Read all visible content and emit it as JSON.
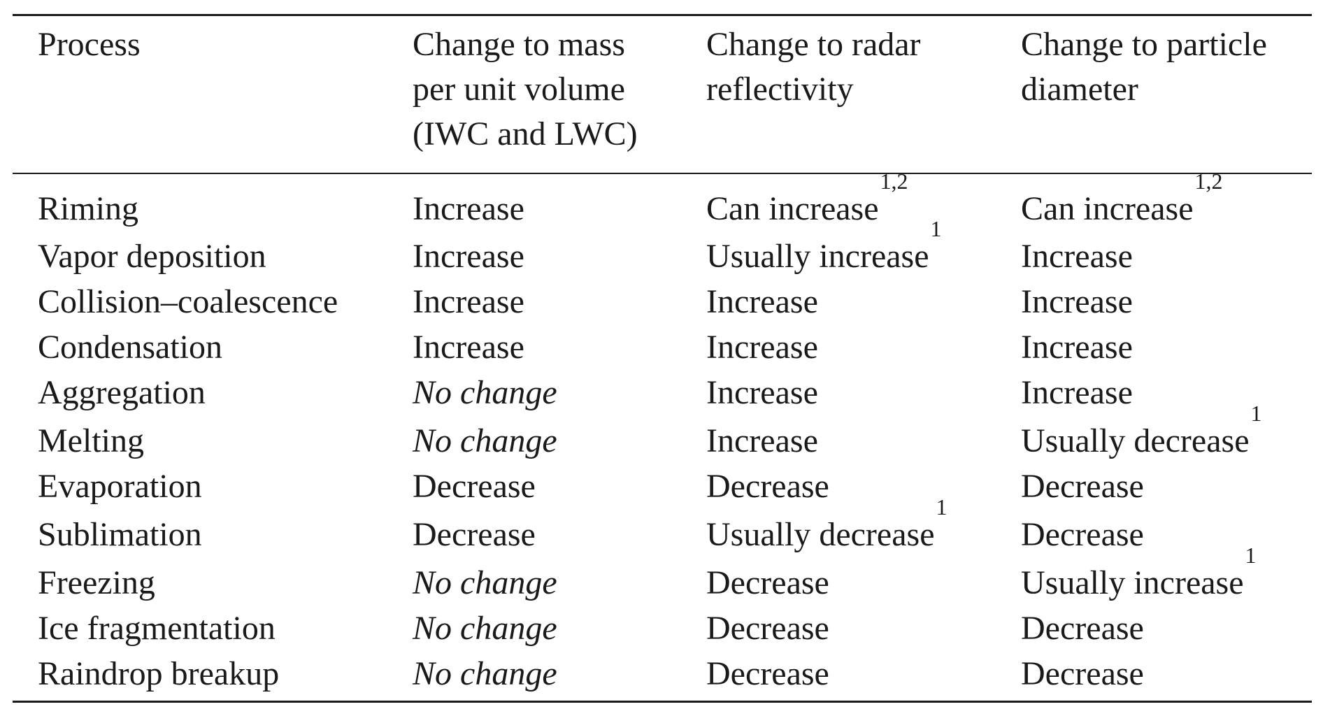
{
  "table": {
    "headers": [
      {
        "lines": [
          "Process"
        ]
      },
      {
        "lines": [
          "Change to mass",
          "per unit volume",
          "(IWC and LWC)"
        ]
      },
      {
        "lines": [
          "Change to radar",
          "reflectivity"
        ]
      },
      {
        "lines": [
          "Change to particle",
          "diameter"
        ]
      }
    ],
    "rows": [
      {
        "process": "Riming",
        "mass": "Increase",
        "mass_italic": false,
        "reflectivity": "Can increase",
        "reflectivity_sup": "1,2",
        "diameter": "Can increase",
        "diameter_sup": "1,2"
      },
      {
        "process": "Vapor deposition",
        "mass": "Increase",
        "mass_italic": false,
        "reflectivity": "Usually increase",
        "reflectivity_sup": "1",
        "diameter": "Increase",
        "diameter_sup": ""
      },
      {
        "process": "Collision–coalescence",
        "mass": "Increase",
        "mass_italic": false,
        "reflectivity": "Increase",
        "reflectivity_sup": "",
        "diameter": "Increase",
        "diameter_sup": ""
      },
      {
        "process": "Condensation",
        "mass": "Increase",
        "mass_italic": false,
        "reflectivity": "Increase",
        "reflectivity_sup": "",
        "diameter": "Increase",
        "diameter_sup": ""
      },
      {
        "process": "Aggregation",
        "mass": "No change",
        "mass_italic": true,
        "reflectivity": "Increase",
        "reflectivity_sup": "",
        "diameter": "Increase",
        "diameter_sup": ""
      },
      {
        "process": "Melting",
        "mass": "No change",
        "mass_italic": true,
        "reflectivity": "Increase",
        "reflectivity_sup": "",
        "diameter": "Usually decrease",
        "diameter_sup": "1"
      },
      {
        "process": "Evaporation",
        "mass": "Decrease",
        "mass_italic": false,
        "reflectivity": "Decrease",
        "reflectivity_sup": "",
        "diameter": "Decrease",
        "diameter_sup": ""
      },
      {
        "process": "Sublimation",
        "mass": "Decrease",
        "mass_italic": false,
        "reflectivity": "Usually decrease",
        "reflectivity_sup": "1",
        "diameter": "Decrease",
        "diameter_sup": ""
      },
      {
        "process": "Freezing",
        "mass": "No change",
        "mass_italic": true,
        "reflectivity": "Decrease",
        "reflectivity_sup": "",
        "diameter": "Usually increase",
        "diameter_sup": "1"
      },
      {
        "process": "Ice fragmentation",
        "mass": "No change",
        "mass_italic": true,
        "reflectivity": "Decrease",
        "reflectivity_sup": "",
        "diameter": "Decrease",
        "diameter_sup": ""
      },
      {
        "process": "Raindrop breakup",
        "mass": "No change",
        "mass_italic": true,
        "reflectivity": "Decrease",
        "reflectivity_sup": "",
        "diameter": "Decrease",
        "diameter_sup": ""
      }
    ]
  }
}
